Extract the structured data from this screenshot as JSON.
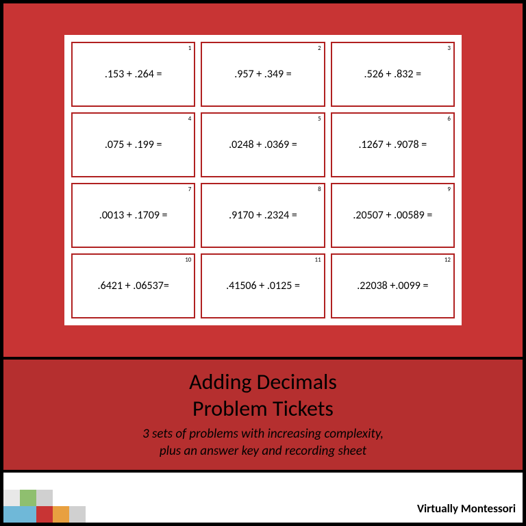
{
  "tickets": [
    {
      "num": "1",
      "problem": ".153 + .264 ="
    },
    {
      "num": "2",
      "problem": ".957 + .349 ="
    },
    {
      "num": "3",
      "problem": ".526 + .832 ="
    },
    {
      "num": "4",
      "problem": ".075 + .199 ="
    },
    {
      "num": "5",
      "problem": ".0248 + .0369 ="
    },
    {
      "num": "6",
      "problem": ".1267 + .9078 ="
    },
    {
      "num": "7",
      "problem": ".0013 + .1709 ="
    },
    {
      "num": "8",
      "problem": ".9170 + .2324 ="
    },
    {
      "num": "9",
      "problem": ".20507 + .00589 ="
    },
    {
      "num": "10",
      "problem": ".6421 + .06537="
    },
    {
      "num": "11",
      "problem": ".41506 + .0125 ="
    },
    {
      "num": "12",
      "problem": ".22038 +.0099 ="
    }
  ],
  "title_line1": "Adding Decimals",
  "title_line2": "Problem Tickets",
  "subtitle_line1": "3 sets of problems with increasing complexity,",
  "subtitle_line2": "plus an answer key and recording sheet",
  "brand": "Virtually Montessori",
  "colors": {
    "top_bg": "#c83434",
    "title_bg": "#b52f2f",
    "ticket_border": "#b02020",
    "frame_border": "#000000"
  },
  "footer_blocks": {
    "row1": [
      "#e8e8e8",
      "#8fbf6f",
      "#d0d0d0"
    ],
    "row2": [
      "#6fb8d8",
      "#6fb8d8",
      "#c83434",
      "#e8a040",
      "#d0d0d0"
    ]
  }
}
